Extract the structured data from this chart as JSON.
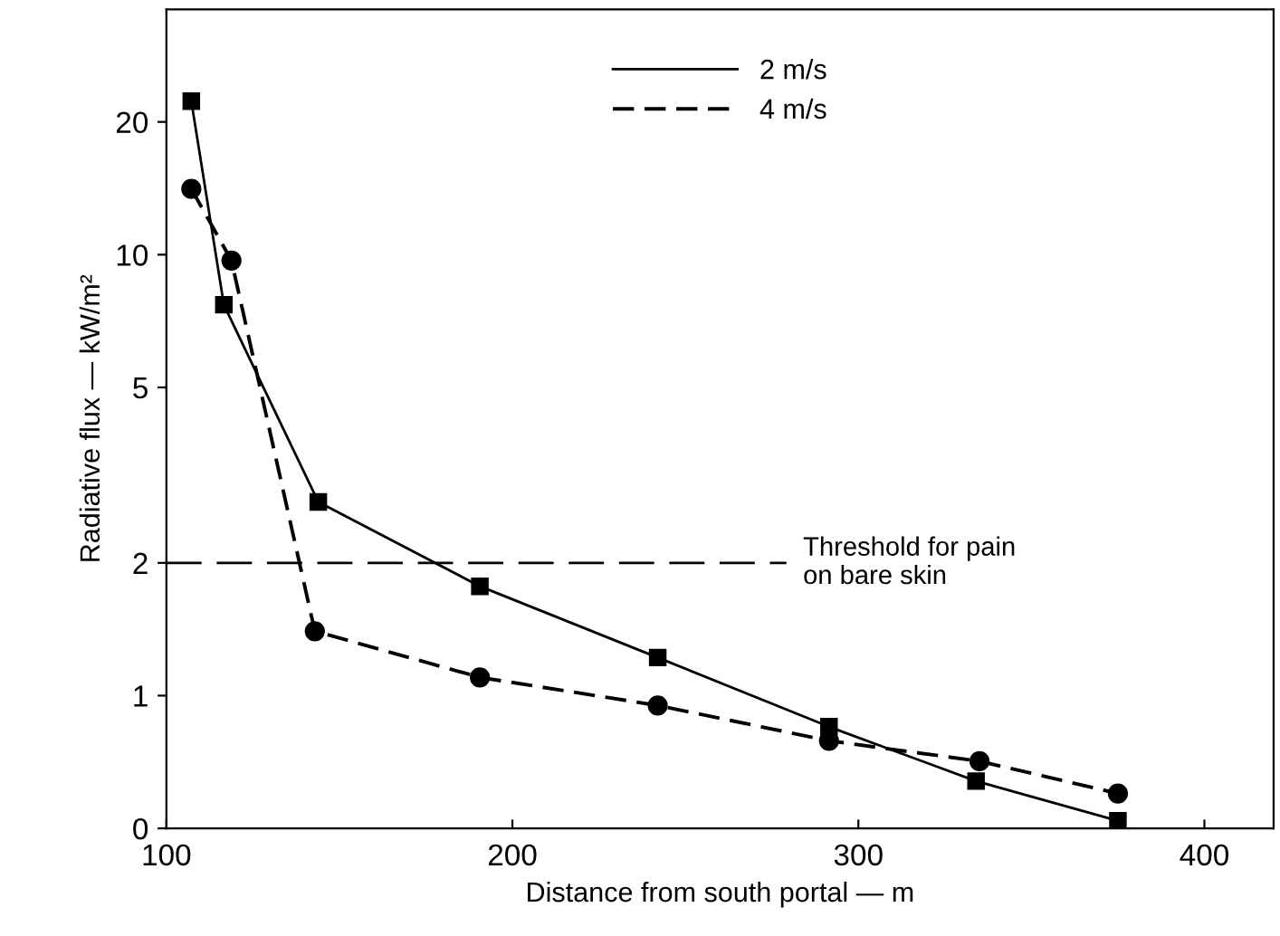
{
  "chart_data": {
    "type": "line",
    "xlabel": "Distance from south portal — m",
    "ylabel": "Radiative flux — kW/m²",
    "log": "y",
    "xlim": [
      100,
      420
    ],
    "ylim": [
      0.5,
      36
    ],
    "xticks": [
      100,
      200,
      300,
      400
    ],
    "yticks": [
      {
        "value": 0.5,
        "label": "0"
      },
      1,
      2,
      5,
      10,
      20
    ],
    "series": [
      {
        "name": "2 m/s",
        "color": "#000000",
        "line_style": "solid",
        "marker": "square",
        "x": [
          107.2,
          116.6,
          143.9,
          190.6,
          242,
          291.5,
          334,
          375
        ],
        "values": [
          22.3,
          7.7,
          2.75,
          1.77,
          1.22,
          0.85,
          0.64,
          0.52
        ]
      },
      {
        "name": "4 m/s",
        "color": "#000000",
        "line_style": "dashed",
        "marker": "circle",
        "x": [
          107.2,
          118.8,
          142.9,
          190.6,
          242,
          291.5,
          335,
          375
        ],
        "values": [
          14.1,
          9.7,
          1.4,
          1.1,
          0.95,
          0.79,
          0.71,
          0.6
        ]
      }
    ],
    "ref_lines": [
      {
        "axis": "y",
        "value": 2,
        "label": "Threshold for pain\non bare skin",
        "color": "#000000",
        "line_style": "dashed"
      }
    ],
    "legend": "top",
    "grid": false
  }
}
